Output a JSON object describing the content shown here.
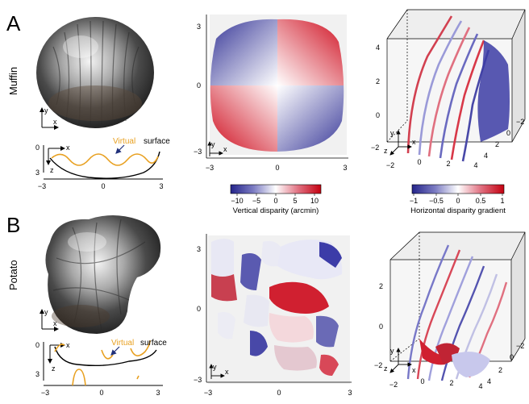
{
  "rows": [
    {
      "letter": "A",
      "label": "Muffin",
      "inset_axes": {
        "y": "y",
        "x": "x"
      },
      "profile": {
        "x_label": "x",
        "z_label": "z",
        "virtual_word": "Virtual",
        "surface_word": "surface",
        "z_ticks": [
          "0",
          "3"
        ],
        "x_ticks": [
          "−3",
          "0",
          "3"
        ]
      },
      "map": {
        "y_ticks": [
          "3",
          "0",
          "−3"
        ],
        "x_ticks": [
          "−3",
          "0",
          "3"
        ],
        "axes": {
          "y": "y",
          "x": "x"
        }
      },
      "cube": {
        "ticks_left": [
          "4",
          "2",
          "0",
          "−2"
        ],
        "ticks_bottom": [
          "−2",
          "0",
          "2",
          "4"
        ],
        "ticks_right": [
          "4",
          "2",
          "0",
          "−2"
        ],
        "axes": {
          "y": "y",
          "z": "z",
          "x": "x"
        }
      }
    },
    {
      "letter": "B",
      "label": "Potato",
      "inset_axes": {
        "y": "y",
        "x": "x"
      },
      "profile": {
        "x_label": "x",
        "z_label": "z",
        "virtual_word": "Virtual",
        "surface_word": "surface",
        "z_ticks": [
          "0",
          "3"
        ],
        "x_ticks": [
          "−3",
          "0",
          "3"
        ]
      },
      "map": {
        "y_ticks": [
          "3",
          "0",
          "−3"
        ],
        "x_ticks": [
          "−3",
          "0",
          "3"
        ],
        "axes": {
          "y": "y",
          "x": "x"
        }
      },
      "cube": {
        "ticks_left": [
          "2",
          "0",
          "−2"
        ],
        "ticks_bottom": [
          "−2",
          "0",
          "2",
          "4"
        ],
        "ticks_right": [
          "4",
          "2",
          "0",
          "−2"
        ],
        "axes": {
          "y": "y",
          "z": "z",
          "x": "x"
        }
      }
    }
  ],
  "colorbars": [
    {
      "label": "Vertical disparity (arcmin)",
      "ticks": [
        "−10",
        "−5",
        "0",
        "5",
        "10"
      ],
      "range": [
        -12,
        12
      ]
    },
    {
      "label": "Horizontal disparity gradient",
      "ticks": [
        "−1",
        "−0.5",
        "0",
        "0.5",
        "1"
      ],
      "range": [
        -1,
        1
      ]
    }
  ],
  "colors": {
    "negative": "#3a3aa0",
    "zero": "#ffffff",
    "positive": "#d01020",
    "virtual_surface": "#e8a020",
    "arrow": "#20307a"
  }
}
